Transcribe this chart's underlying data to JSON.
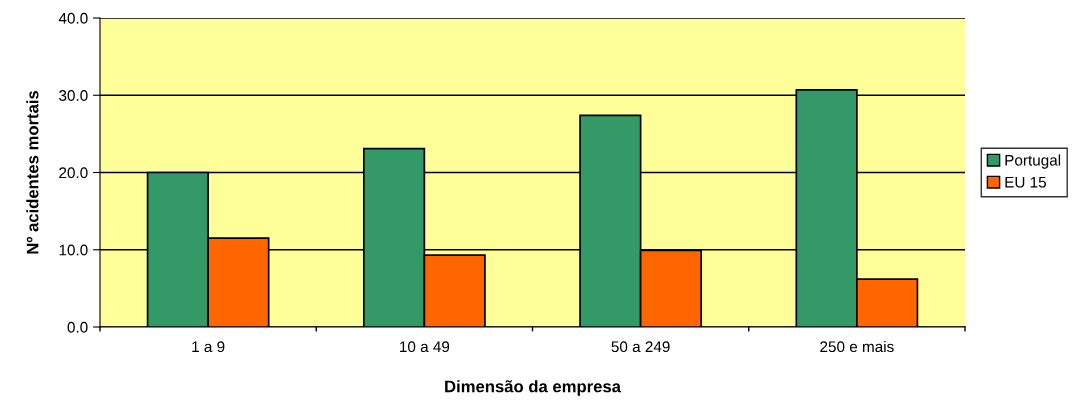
{
  "chart_data": {
    "type": "bar",
    "xlabel": "Dimensão da empresa",
    "ylabel": "Nº acidentes mortais",
    "categories": [
      "1 a 9",
      "10 a 49",
      "50 a 249",
      "250 e mais"
    ],
    "series": [
      {
        "name": "Portugal",
        "color": "#339966",
        "values": [
          20.0,
          23.1,
          27.4,
          30.7
        ]
      },
      {
        "name": "EU 15",
        "color": "#ff6600",
        "values": [
          11.5,
          9.3,
          9.9,
          6.2
        ]
      }
    ],
    "ylim": [
      0,
      40
    ],
    "yticks": [
      {
        "value": 0,
        "label": "0.0"
      },
      {
        "value": 10,
        "label": "10.0"
      },
      {
        "value": 20,
        "label": "20.0"
      },
      {
        "value": 30,
        "label": "30.0"
      },
      {
        "value": 40,
        "label": "40.0"
      }
    ],
    "grid": "y",
    "legend": "right"
  }
}
